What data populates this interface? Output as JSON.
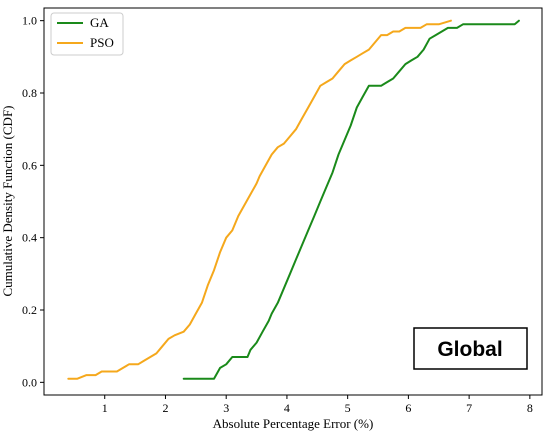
{
  "chart_data": {
    "type": "line",
    "xlabel": "Absolute Percentage Error (%)",
    "ylabel": "Cumulative Density Function (CDF)",
    "xlim": [
      0.0,
      8.2
    ],
    "ylim": [
      -0.035,
      1.035
    ],
    "xticks": [
      1,
      2,
      3,
      4,
      5,
      6,
      7,
      8
    ],
    "yticks": [
      0.0,
      0.2,
      0.4,
      0.6,
      0.8,
      1.0
    ],
    "xtick_labels": [
      "1",
      "2",
      "3",
      "4",
      "5",
      "6",
      "7",
      "8"
    ],
    "ytick_labels": [
      "0.0",
      "0.2",
      "0.4",
      "0.6",
      "0.8",
      "1.0"
    ],
    "legend_position": "top-left",
    "annotation": "Global",
    "series": [
      {
        "name": "GA",
        "color": "#1a8a1a",
        "points": [
          [
            2.3,
            0.01
          ],
          [
            2.5,
            0.01
          ],
          [
            2.7,
            0.01
          ],
          [
            2.8,
            0.01
          ],
          [
            2.9,
            0.04
          ],
          [
            3.0,
            0.05
          ],
          [
            3.1,
            0.07
          ],
          [
            3.2,
            0.07
          ],
          [
            3.35,
            0.07
          ],
          [
            3.4,
            0.09
          ],
          [
            3.5,
            0.11
          ],
          [
            3.6,
            0.14
          ],
          [
            3.7,
            0.17
          ],
          [
            3.75,
            0.19
          ],
          [
            3.85,
            0.22
          ],
          [
            3.95,
            0.26
          ],
          [
            4.05,
            0.3
          ],
          [
            4.15,
            0.34
          ],
          [
            4.25,
            0.38
          ],
          [
            4.35,
            0.42
          ],
          [
            4.45,
            0.46
          ],
          [
            4.55,
            0.5
          ],
          [
            4.65,
            0.54
          ],
          [
            4.75,
            0.58
          ],
          [
            4.85,
            0.63
          ],
          [
            4.95,
            0.67
          ],
          [
            5.05,
            0.71
          ],
          [
            5.15,
            0.76
          ],
          [
            5.25,
            0.79
          ],
          [
            5.35,
            0.82
          ],
          [
            5.45,
            0.82
          ],
          [
            5.55,
            0.82
          ],
          [
            5.65,
            0.83
          ],
          [
            5.75,
            0.84
          ],
          [
            5.85,
            0.86
          ],
          [
            5.95,
            0.88
          ],
          [
            6.05,
            0.89
          ],
          [
            6.15,
            0.9
          ],
          [
            6.25,
            0.92
          ],
          [
            6.35,
            0.95
          ],
          [
            6.45,
            0.96
          ],
          [
            6.55,
            0.97
          ],
          [
            6.65,
            0.98
          ],
          [
            6.8,
            0.98
          ],
          [
            6.9,
            0.99
          ],
          [
            7.2,
            0.99
          ],
          [
            7.5,
            0.99
          ],
          [
            7.75,
            0.99
          ],
          [
            7.82,
            1.0
          ]
        ]
      },
      {
        "name": "PSO",
        "color": "#f5a81c",
        "points": [
          [
            0.4,
            0.01
          ],
          [
            0.55,
            0.01
          ],
          [
            0.7,
            0.02
          ],
          [
            0.85,
            0.02
          ],
          [
            0.95,
            0.03
          ],
          [
            1.05,
            0.03
          ],
          [
            1.2,
            0.03
          ],
          [
            1.3,
            0.04
          ],
          [
            1.4,
            0.05
          ],
          [
            1.55,
            0.05
          ],
          [
            1.65,
            0.06
          ],
          [
            1.75,
            0.07
          ],
          [
            1.85,
            0.08
          ],
          [
            1.95,
            0.1
          ],
          [
            2.05,
            0.12
          ],
          [
            2.15,
            0.13
          ],
          [
            2.3,
            0.14
          ],
          [
            2.4,
            0.16
          ],
          [
            2.5,
            0.19
          ],
          [
            2.6,
            0.22
          ],
          [
            2.7,
            0.27
          ],
          [
            2.8,
            0.31
          ],
          [
            2.9,
            0.36
          ],
          [
            3.0,
            0.4
          ],
          [
            3.1,
            0.42
          ],
          [
            3.2,
            0.46
          ],
          [
            3.3,
            0.49
          ],
          [
            3.4,
            0.52
          ],
          [
            3.5,
            0.55
          ],
          [
            3.55,
            0.57
          ],
          [
            3.65,
            0.6
          ],
          [
            3.75,
            0.63
          ],
          [
            3.85,
            0.65
          ],
          [
            3.95,
            0.66
          ],
          [
            4.05,
            0.68
          ],
          [
            4.15,
            0.7
          ],
          [
            4.25,
            0.73
          ],
          [
            4.35,
            0.76
          ],
          [
            4.45,
            0.79
          ],
          [
            4.55,
            0.82
          ],
          [
            4.65,
            0.83
          ],
          [
            4.75,
            0.84
          ],
          [
            4.85,
            0.86
          ],
          [
            4.95,
            0.88
          ],
          [
            5.05,
            0.89
          ],
          [
            5.15,
            0.9
          ],
          [
            5.25,
            0.91
          ],
          [
            5.35,
            0.92
          ],
          [
            5.45,
            0.94
          ],
          [
            5.55,
            0.96
          ],
          [
            5.65,
            0.96
          ],
          [
            5.75,
            0.97
          ],
          [
            5.85,
            0.97
          ],
          [
            5.95,
            0.98
          ],
          [
            6.1,
            0.98
          ],
          [
            6.2,
            0.98
          ],
          [
            6.3,
            0.99
          ],
          [
            6.5,
            0.99
          ],
          [
            6.7,
            1.0
          ]
        ]
      }
    ]
  }
}
